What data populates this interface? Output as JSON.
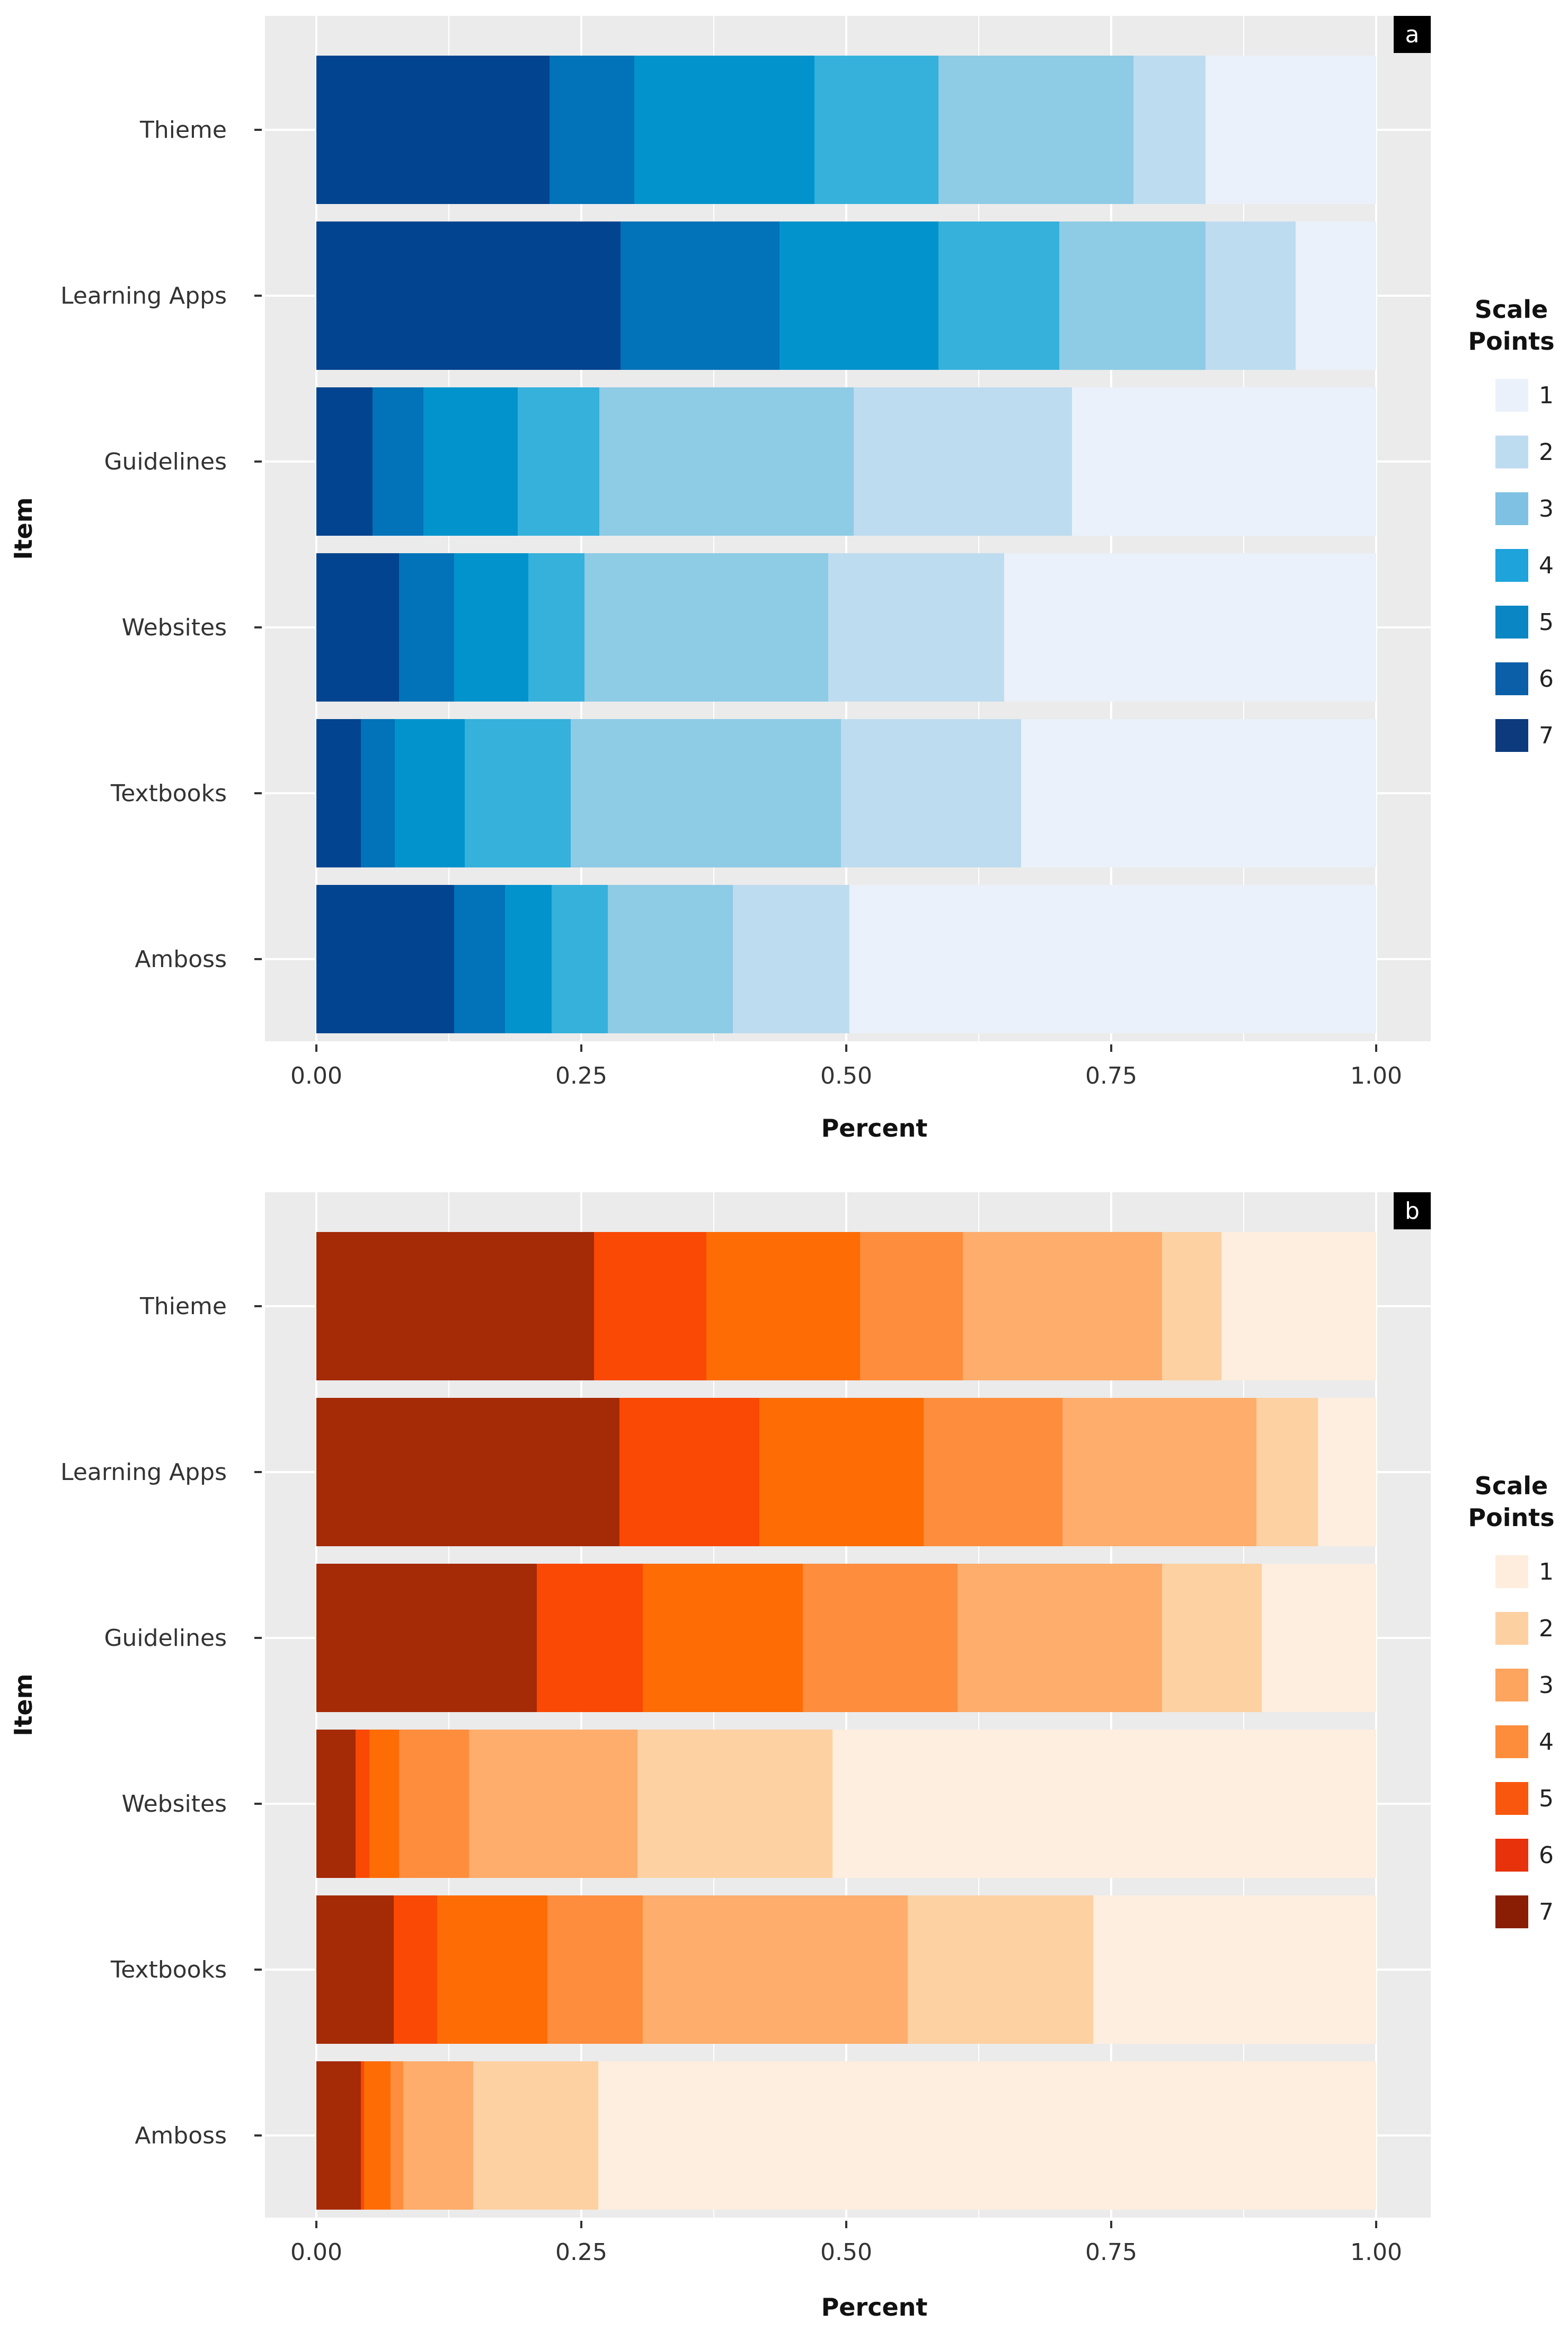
{
  "chart_data": [
    {
      "type": "bar",
      "orientation": "horizontal",
      "stacked": true,
      "panel_label": "a",
      "title": "",
      "xlabel": "Percent",
      "ylabel": "Item",
      "xlim": [
        0,
        1
      ],
      "x_ticks": [
        "0.00",
        "0.25",
        "0.50",
        "0.75",
        "1.00"
      ],
      "grid": true,
      "legend_position": "right",
      "legend_title_lines": [
        "Scale",
        "Points"
      ],
      "categories": [
        "Thieme",
        "Learning Apps",
        "Guidelines",
        "Websites",
        "Textbooks",
        "Amboss"
      ],
      "series": [
        {
          "name": "7",
          "values": [
            0.22,
            0.287,
            0.053,
            0.078,
            0.042,
            0.13
          ],
          "color": "#02448f"
        },
        {
          "name": "6",
          "values": [
            0.08,
            0.15,
            0.048,
            0.052,
            0.032,
            0.048
          ],
          "color": "#0272b9"
        },
        {
          "name": "5",
          "values": [
            0.17,
            0.15,
            0.089,
            0.07,
            0.066,
            0.044
          ],
          "color": "#0393cc"
        },
        {
          "name": "4",
          "values": [
            0.117,
            0.114,
            0.077,
            0.053,
            0.1,
            0.053
          ],
          "color": "#35b1dc"
        },
        {
          "name": "3",
          "values": [
            0.184,
            0.138,
            0.24,
            0.23,
            0.255,
            0.118
          ],
          "color": "#8ecbe5"
        },
        {
          "name": "2",
          "values": [
            0.068,
            0.085,
            0.206,
            0.166,
            0.17,
            0.11
          ],
          "color": "#bedcf0"
        },
        {
          "name": "1",
          "values": [
            0.161,
            0.076,
            0.287,
            0.351,
            0.335,
            0.497
          ],
          "color": "#ebf1fa"
        }
      ],
      "legend_entries": [
        {
          "label": "1",
          "color": "#ebf1fa"
        },
        {
          "label": "2",
          "color": "#bedcf0"
        },
        {
          "label": "3",
          "color": "#7fc1e2"
        },
        {
          "label": "4",
          "color": "#1ea3db"
        },
        {
          "label": "5",
          "color": "#0a86c4"
        },
        {
          "label": "6",
          "color": "#0a5fa8"
        },
        {
          "label": "7",
          "color": "#0c3a7c"
        }
      ]
    },
    {
      "type": "bar",
      "orientation": "horizontal",
      "stacked": true,
      "panel_label": "b",
      "title": "",
      "xlabel": "Percent",
      "ylabel": "Item",
      "xlim": [
        0,
        1
      ],
      "x_ticks": [
        "0.00",
        "0.25",
        "0.50",
        "0.75",
        "1.00"
      ],
      "grid": true,
      "legend_position": "right",
      "legend_title_lines": [
        "Scale",
        "Points"
      ],
      "categories": [
        "Thieme",
        "Learning Apps",
        "Guidelines",
        "Websites",
        "Textbooks",
        "Amboss"
      ],
      "series": [
        {
          "name": "7",
          "values": [
            0.262,
            0.286,
            0.208,
            0.037,
            0.073,
            0.042
          ],
          "color": "#a52a06"
        },
        {
          "name": "6",
          "values": [
            0.106,
            0.132,
            0.1,
            0.013,
            0.041,
            0.003
          ],
          "color": "#f94904"
        },
        {
          "name": "5",
          "values": [
            0.145,
            0.155,
            0.151,
            0.028,
            0.104,
            0.025
          ],
          "color": "#fe6c06"
        },
        {
          "name": "4",
          "values": [
            0.097,
            0.131,
            0.146,
            0.066,
            0.09,
            0.012
          ],
          "color": "#fe8d3d"
        },
        {
          "name": "3",
          "values": [
            0.188,
            0.183,
            0.193,
            0.159,
            0.25,
            0.066
          ],
          "color": "#fead6c"
        },
        {
          "name": "2",
          "values": [
            0.056,
            0.058,
            0.094,
            0.184,
            0.175,
            0.118
          ],
          "color": "#fdd1a2"
        },
        {
          "name": "1",
          "values": [
            0.146,
            0.055,
            0.108,
            0.513,
            0.267,
            0.734
          ],
          "color": "#feeedf"
        }
      ],
      "legend_entries": [
        {
          "label": "1",
          "color": "#feeddd"
        },
        {
          "label": "2",
          "color": "#fdd0a2"
        },
        {
          "label": "3",
          "color": "#fda55f"
        },
        {
          "label": "4",
          "color": "#fd8c3b"
        },
        {
          "label": "5",
          "color": "#f9570e"
        },
        {
          "label": "6",
          "color": "#e8320c"
        },
        {
          "label": "7",
          "color": "#8a1e04"
        }
      ]
    }
  ]
}
